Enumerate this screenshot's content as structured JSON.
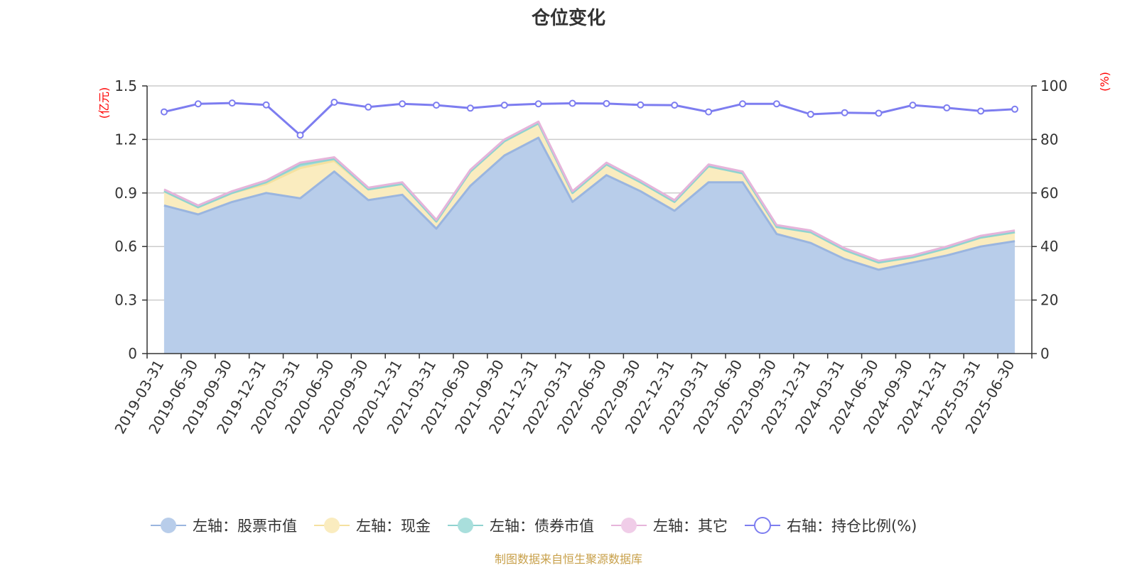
{
  "chart_data": {
    "type": "area",
    "title": "仓位变化",
    "left_axis_unit": "(亿元)",
    "right_axis_unit": "(%)",
    "categories": [
      "2019-03-31",
      "2019-06-30",
      "2019-09-30",
      "2019-12-31",
      "2020-03-31",
      "2020-06-30",
      "2020-09-30",
      "2020-12-31",
      "2021-03-31",
      "2021-06-30",
      "2021-09-30",
      "2021-12-31",
      "2022-03-31",
      "2022-06-30",
      "2022-09-30",
      "2022-12-31",
      "2023-03-31",
      "2023-06-30",
      "2023-09-30",
      "2023-12-31",
      "2024-03-31",
      "2024-06-30",
      "2024-09-30",
      "2024-12-31",
      "2025-03-31",
      "2025-06-30"
    ],
    "ylim_left": [
      0,
      1.5
    ],
    "yticks_left": [
      "0",
      "0.3",
      "0.6",
      "0.9",
      "1.2",
      "1.5"
    ],
    "ylim_right": [
      0,
      100
    ],
    "yticks_right": [
      "0",
      "20",
      "40",
      "60",
      "80",
      "100"
    ],
    "grid": true,
    "legend_position": "bottom",
    "series": [
      {
        "name": "左轴：股票市值",
        "axis": "left",
        "kind": "stacked-area",
        "color": "#9ab5df",
        "fill": "#b8cdea",
        "values": [
          0.83,
          0.78,
          0.85,
          0.9,
          0.87,
          1.02,
          0.86,
          0.89,
          0.7,
          0.94,
          1.11,
          1.21,
          0.85,
          1.0,
          0.91,
          0.8,
          0.96,
          0.96,
          0.67,
          0.62,
          0.53,
          0.47,
          0.51,
          0.55,
          0.6,
          0.63
        ]
      },
      {
        "name": "左轴：现金",
        "axis": "left",
        "kind": "stacked-area",
        "color": "#f5e19f",
        "fill": "#faecbf",
        "values": [
          0.08,
          0.04,
          0.05,
          0.05,
          0.17,
          0.06,
          0.06,
          0.06,
          0.04,
          0.08,
          0.08,
          0.08,
          0.05,
          0.06,
          0.05,
          0.05,
          0.09,
          0.05,
          0.04,
          0.06,
          0.05,
          0.04,
          0.03,
          0.04,
          0.05,
          0.05
        ]
      },
      {
        "name": "左轴：债券市值",
        "axis": "left",
        "kind": "stacked-area",
        "color": "#8fd3d0",
        "fill": "#a9dfdc",
        "values": [
          0,
          0,
          0,
          0.01,
          0.02,
          0.01,
          0,
          0,
          0,
          0,
          0,
          0,
          0,
          0,
          0,
          0,
          0,
          0,
          0,
          0,
          0,
          0,
          0,
          0,
          0,
          0
        ]
      },
      {
        "name": "左轴：其它",
        "axis": "left",
        "kind": "stacked-area",
        "color": "#e6b4da",
        "fill": "#f0cde8",
        "values": [
          0.01,
          0.01,
          0.01,
          0.01,
          0.01,
          0.01,
          0.01,
          0.01,
          0.01,
          0.01,
          0.01,
          0.01,
          0.01,
          0.01,
          0.01,
          0.01,
          0.01,
          0.01,
          0.01,
          0.01,
          0.01,
          0.01,
          0.01,
          0.01,
          0.01,
          0.01
        ]
      },
      {
        "name": "右轴：持仓比例(%)",
        "axis": "right",
        "kind": "line",
        "color": "#7d7df0",
        "values": [
          90.3,
          93.3,
          93.6,
          92.9,
          81.6,
          93.9,
          92.1,
          93.3,
          92.8,
          91.7,
          92.8,
          93.3,
          93.5,
          93.4,
          92.9,
          92.8,
          90.3,
          93.3,
          93.3,
          89.4,
          90.0,
          89.8,
          92.8,
          91.8,
          90.6,
          91.3
        ]
      }
    ],
    "source_note": "制图数据来自恒生聚源数据库"
  }
}
